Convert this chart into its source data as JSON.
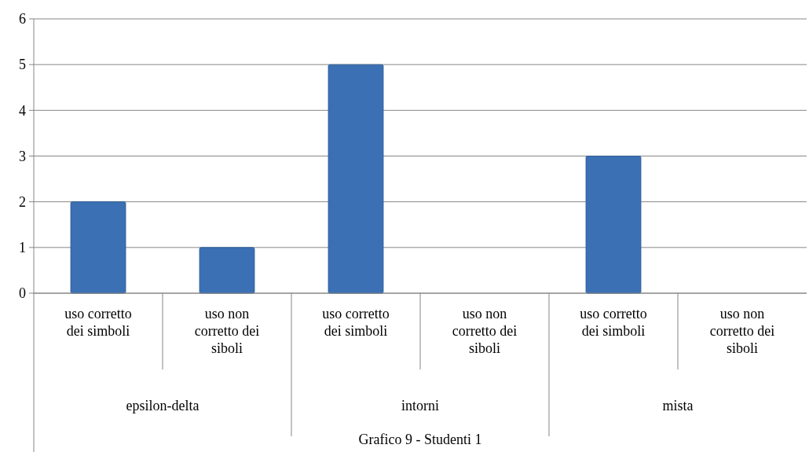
{
  "chart_data": {
    "type": "bar",
    "categories": [
      "uso corretto dei simboli",
      "uso non corretto dei siboli",
      "uso corretto dei simboli",
      "uso non corretto dei siboli",
      "uso corretto dei simboli",
      "uso non corretto dei siboli"
    ],
    "values": [
      2,
      1,
      5,
      0,
      3,
      0
    ],
    "color": "#3c70b4",
    "ylim": [
      0,
      6
    ],
    "yticks": [
      0,
      1,
      2,
      3,
      4,
      5,
      6
    ],
    "grid": "y",
    "annotations": [
      "epsilon-delta",
      "intorni",
      "mista",
      "Grafico 9 - Studenti 1"
    ]
  }
}
